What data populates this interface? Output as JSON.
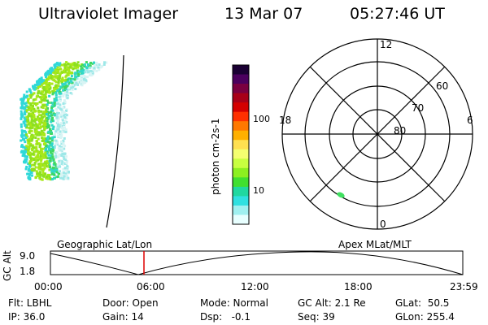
{
  "header": {
    "instrument": "Ultraviolet Imager",
    "date": "13 Mar 07",
    "time": "05:27:46 UT"
  },
  "colorbar": {
    "label": "photon cm-2s-1",
    "ticks": [
      "100",
      "10"
    ],
    "colors": [
      "#1a0033",
      "#4b005e",
      "#7a0040",
      "#a80018",
      "#d40000",
      "#ff3000",
      "#ff7800",
      "#ffb000",
      "#ffe050",
      "#f4ff70",
      "#c8ff40",
      "#8cf020",
      "#40e030",
      "#20d8a0",
      "#30e0e0",
      "#a0f0f0",
      "#e8ffff"
    ]
  },
  "polar": {
    "mlt_labels": {
      "top": "12",
      "left": "18",
      "right": "6",
      "bottom": "0"
    },
    "lat_labels": [
      "60",
      "70",
      "80"
    ]
  },
  "timeline": {
    "left_label": "Geographic Lat/Lon",
    "right_label": "Apex MLat/MLT",
    "y_axis_label": "GC Alt",
    "y_ticks": [
      "9.0",
      "1.8"
    ],
    "x_ticks": [
      "00:00",
      "06:00",
      "12:00",
      "18:00",
      "23:59"
    ],
    "marker_color": "#dd0000"
  },
  "status": {
    "flt": "Flt: LBHL",
    "ip": "IP: 36.0",
    "door": "Door: Open",
    "gain": "Gain: 14",
    "mode": "Mode: Normal",
    "dsp": "Dsp:   -0.1",
    "gcalt": "GC Alt: 2.1 Re",
    "seq": "Seq: 39",
    "glat": "GLat:  50.5",
    "glon": "GLon: 255.4"
  }
}
